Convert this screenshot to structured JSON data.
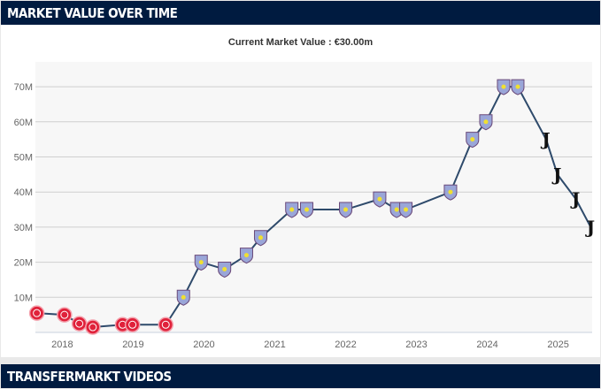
{
  "header": {
    "title": "MARKET VALUE OVER TIME"
  },
  "current_value": "Current Market Value : €30.00m",
  "footer": {
    "title": "TRANSFERMARKT VIDEOS"
  },
  "colors": {
    "line": "#2e4a6b",
    "header": "#001b40",
    "girona": "#e0213a",
    "villa": "#9aa6d8",
    "juve": "#111111"
  },
  "chart_data": {
    "type": "line",
    "title": "Current Market Value : €30.00m",
    "xlabel": "",
    "ylabel": "",
    "xlim": [
      2017.62,
      2025.48
    ],
    "ylim": [
      0,
      75
    ],
    "yticks": [
      10,
      20,
      30,
      40,
      50,
      60,
      70
    ],
    "ytick_labels": [
      "10M",
      "20M",
      "30M",
      "40M",
      "50M",
      "60M",
      "70M"
    ],
    "xticks": [
      2018,
      2019,
      2020,
      2021,
      2022,
      2023,
      2024,
      2025
    ],
    "xtick_labels": [
      "2018",
      "2019",
      "2020",
      "2021",
      "2022",
      "2023",
      "2024",
      "2025"
    ],
    "grid": true,
    "unit": "M €",
    "points": [
      {
        "x": 2017.64,
        "y": 5.5,
        "club": "girona"
      },
      {
        "x": 2018.03,
        "y": 5,
        "club": "girona"
      },
      {
        "x": 2018.24,
        "y": 2.5,
        "club": "girona"
      },
      {
        "x": 2018.43,
        "y": 1.5,
        "club": "girona"
      },
      {
        "x": 2018.85,
        "y": 2.2,
        "club": "girona"
      },
      {
        "x": 2018.99,
        "y": 2.2,
        "club": "girona"
      },
      {
        "x": 2019.46,
        "y": 2.2,
        "club": "girona"
      },
      {
        "x": 2019.71,
        "y": 10,
        "club": "villa"
      },
      {
        "x": 2019.96,
        "y": 20,
        "club": "villa"
      },
      {
        "x": 2020.29,
        "y": 18,
        "club": "villa"
      },
      {
        "x": 2020.6,
        "y": 22,
        "club": "villa"
      },
      {
        "x": 2020.8,
        "y": 27,
        "club": "villa"
      },
      {
        "x": 2021.24,
        "y": 35,
        "club": "villa"
      },
      {
        "x": 2021.45,
        "y": 35,
        "club": "villa"
      },
      {
        "x": 2022.0,
        "y": 35,
        "club": "villa"
      },
      {
        "x": 2022.48,
        "y": 38,
        "club": "villa"
      },
      {
        "x": 2022.72,
        "y": 35,
        "club": "villa"
      },
      {
        "x": 2022.85,
        "y": 35,
        "club": "villa"
      },
      {
        "x": 2023.48,
        "y": 40,
        "club": "villa"
      },
      {
        "x": 2023.79,
        "y": 55,
        "club": "villa"
      },
      {
        "x": 2023.98,
        "y": 60,
        "club": "villa"
      },
      {
        "x": 2024.23,
        "y": 70,
        "club": "villa"
      },
      {
        "x": 2024.43,
        "y": 70,
        "club": "villa"
      },
      {
        "x": 2024.83,
        "y": 55,
        "club": "juve"
      },
      {
        "x": 2024.99,
        "y": 45,
        "club": "juve"
      },
      {
        "x": 2025.25,
        "y": 38,
        "club": "juve"
      },
      {
        "x": 2025.46,
        "y": 30,
        "club": "juve"
      }
    ]
  }
}
